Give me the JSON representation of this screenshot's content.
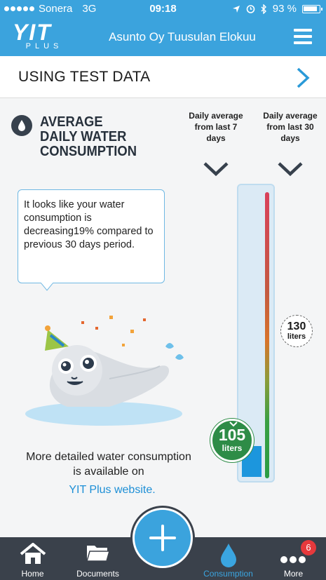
{
  "status": {
    "carrier": "Sonera",
    "network": "3G",
    "time": "09:18",
    "battery": "93 %"
  },
  "header": {
    "logo_main": "YIT",
    "logo_sub": "PLUS",
    "title": "Asunto Oy Tuusulan Elokuu"
  },
  "test_banner": {
    "label": "USING TEST DATA"
  },
  "section": {
    "title_line1": "AVERAGE",
    "title_line2": "DAILY WATER",
    "title_line3": "CONSUMPTION",
    "col7": "Daily average from last 7 days",
    "col30": "Daily average from last 30 days"
  },
  "message": "It looks like your water consumption is decreasing19% compared to previous 30 days period.",
  "gauge": {
    "avg7_value": "105",
    "avg7_unit": "liters",
    "avg30_value": "130",
    "avg30_unit": "liters",
    "colors": {
      "high": "#d9405a",
      "mid": "#d8742a",
      "low": "#2a9d45",
      "fill": "#1c96dd"
    }
  },
  "footer_text": {
    "line1": "More detailed water consumption",
    "line2": "is available on",
    "link": "YIT Plus website."
  },
  "tabs": [
    {
      "label": "Home",
      "icon": "home-icon"
    },
    {
      "label": "Documents",
      "icon": "folder-icon"
    },
    {
      "label": "Consumption",
      "icon": "water-drop-icon"
    },
    {
      "label": "More",
      "icon": "more-dots-icon",
      "badge": "6"
    }
  ]
}
